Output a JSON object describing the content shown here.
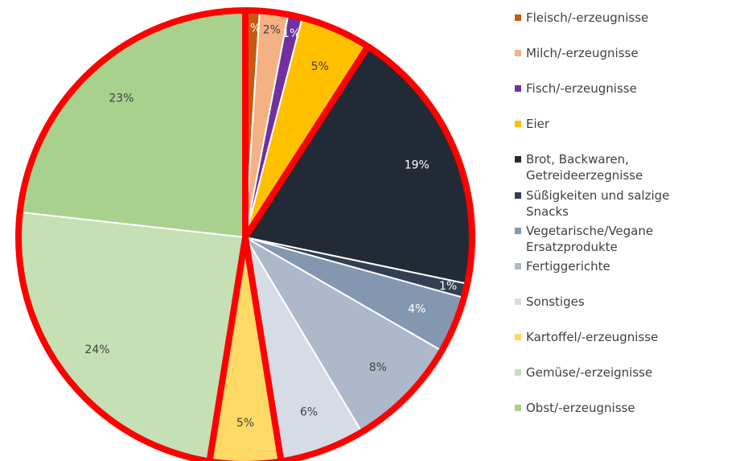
{
  "chart_data": {
    "type": "pie",
    "categories": [
      "Fleisch/-erzeugnisse",
      "Milch/-erzeugnisse",
      "Fisch/-erzeugnisse",
      "Eier",
      "Brot, Backwaren, Getreideerzegnisse",
      "Süßigkeiten und salzige Snacks",
      "Vegetarische/Vegane Ersatzprodukte",
      "Fertiggerichte",
      "Sonstiges",
      "Kartoffel/-erzeugnisse",
      "Gemüse/-erzeignisse",
      "Obst/-erzeugnisse"
    ],
    "values": [
      1,
      2,
      1,
      5,
      19,
      1,
      4,
      8,
      6,
      5,
      24,
      23
    ],
    "value_labels": [
      "1%",
      "2%",
      "1%",
      "5%",
      "19%",
      "1%",
      "4%",
      "8%",
      "6%",
      "5%",
      "24%",
      "23%"
    ],
    "colors": [
      "#c55a11",
      "#f4b183",
      "#7030a0",
      "#ffc000",
      "#222a35",
      "#333f50",
      "#8497b0",
      "#adb9ca",
      "#d6dce5",
      "#ffd966",
      "#c5e0b4",
      "#a9d18e"
    ],
    "legend": "right"
  }
}
